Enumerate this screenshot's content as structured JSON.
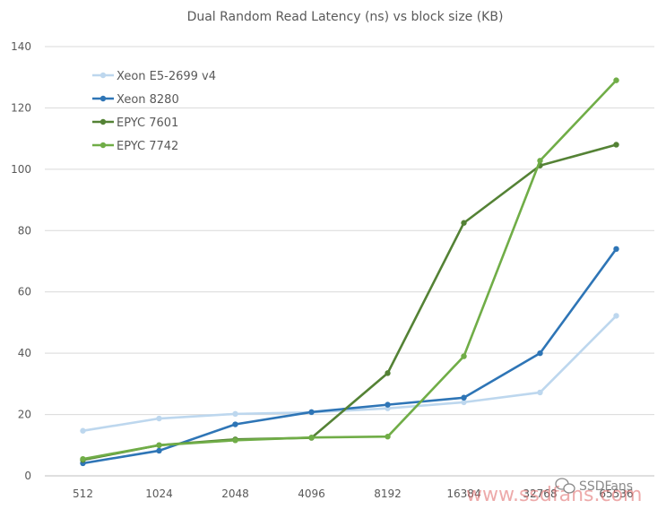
{
  "chart_data": {
    "type": "line",
    "title": "Dual Random Read Latency (ns) vs block size (KB)",
    "xlabel": "",
    "ylabel": "",
    "categories": [
      "512",
      "1024",
      "2048",
      "4096",
      "8192",
      "16384",
      "32768",
      "65536"
    ],
    "ylim": [
      0,
      140
    ],
    "yticks": [
      0,
      20,
      40,
      60,
      80,
      100,
      120,
      140
    ],
    "grid": true,
    "legend_position": "top-left",
    "series": [
      {
        "name": "Xeon E5-2699 v4",
        "color": "#bdd7ee",
        "values": [
          14.7,
          18.7,
          20.2,
          20.7,
          22.0,
          24.0,
          27.2,
          52.2
        ]
      },
      {
        "name": "Xeon 8280",
        "color": "#2e75b6",
        "values": [
          4.1,
          8.2,
          16.8,
          20.8,
          23.2,
          25.5,
          40.0,
          74.0
        ]
      },
      {
        "name": "EPYC 7601",
        "color": "#548235",
        "values": [
          5.2,
          10.0,
          11.9,
          12.4,
          33.5,
          82.5,
          101.2,
          108.0
        ]
      },
      {
        "name": "EPYC 7742",
        "color": "#70ad47",
        "values": [
          5.5,
          10.0,
          11.6,
          12.5,
          12.8,
          39.0,
          102.8,
          129.0
        ]
      }
    ]
  },
  "watermark": {
    "icon": "wechat-icon",
    "label": "SSDFans",
    "url_text": "www.ssdfans.com"
  }
}
